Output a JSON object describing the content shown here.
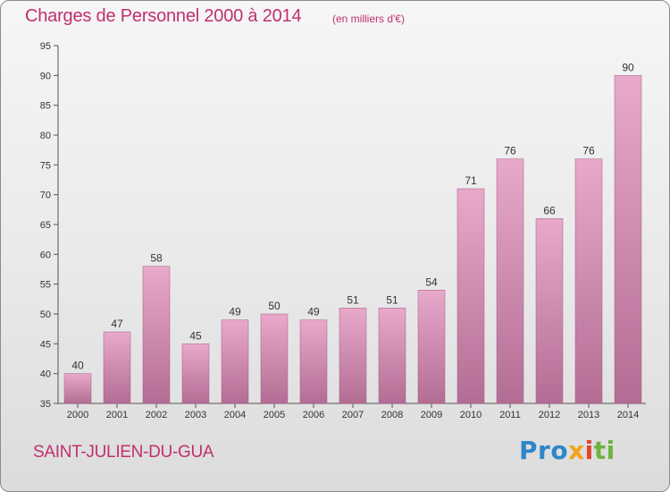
{
  "header": {
    "title": "Charges de Personnel 2000 à 2014",
    "subtitle": "(en milliers d'€)"
  },
  "footer": {
    "commune": "SAINT-JULIEN-DU-GUA",
    "logo_text": "Proxiti",
    "logo_parts": [
      "Pro",
      "x",
      "i",
      "ti"
    ]
  },
  "colors": {
    "title": "#c0306f",
    "bar_top": "#e8a9cb",
    "bar_bottom": "#b36d94",
    "axis": "#555555"
  },
  "chart_data": {
    "type": "bar",
    "title": "Charges de Personnel 2000 à 2014",
    "subtitle": "(en milliers d'€)",
    "categories": [
      "2000",
      "2001",
      "2002",
      "2003",
      "2004",
      "2005",
      "2006",
      "2007",
      "2008",
      "2009",
      "2010",
      "2011",
      "2012",
      "2013",
      "2014"
    ],
    "values": [
      40,
      47,
      58,
      45,
      49,
      50,
      49,
      51,
      51,
      54,
      71,
      76,
      66,
      76,
      90
    ],
    "ylim": [
      35,
      95
    ],
    "yticks": [
      35,
      40,
      45,
      50,
      55,
      60,
      65,
      70,
      75,
      80,
      85,
      90,
      95
    ],
    "grid": false,
    "data_labels": true
  }
}
